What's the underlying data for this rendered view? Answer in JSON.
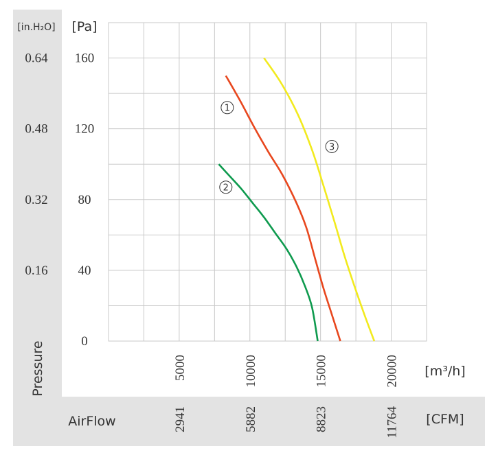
{
  "chart_data": {
    "type": "line",
    "x_unit_primary": "[m³/h]",
    "x_unit_secondary": "[CFM]",
    "y_unit_primary": "[Pa]",
    "y_unit_secondary": "[in.H₂O]",
    "ylabel": "Pressure",
    "xlabel": "AirFlow",
    "xlim": [
      0,
      22500
    ],
    "ylim": [
      0,
      180
    ],
    "x_ticks_primary": [
      5000,
      10000,
      15000,
      20000
    ],
    "x_ticks_secondary": [
      "2941",
      "5882",
      "8823",
      "11764"
    ],
    "y_ticks_primary": [
      0,
      40,
      80,
      120,
      160
    ],
    "y_ticks_secondary": [
      "0.16",
      "0.32",
      "0.48",
      "0.64"
    ],
    "grid": true,
    "series": [
      {
        "name": "1",
        "color": "#e8471e",
        "x": [
          8300,
          9300,
          10300,
          11300,
          12300,
          13300,
          14000,
          14600,
          15200,
          15800,
          16400
        ],
        "y": [
          150,
          136,
          121,
          107,
          94,
          78,
          64,
          47,
          30,
          15,
          0
        ],
        "label_at": [
          8400,
          132
        ]
      },
      {
        "name": "2",
        "color": "#0e9a4e",
        "x": [
          7800,
          8600,
          9400,
          10200,
          11000,
          11800,
          12600,
          13300,
          13900,
          14400,
          14800
        ],
        "y": [
          100,
          93,
          86,
          78,
          70,
          61,
          52,
          42,
          31,
          19,
          0
        ],
        "label_at": [
          8300,
          87
        ]
      },
      {
        "name": "3",
        "color": "#f2ea1e",
        "x": [
          11000,
          12200,
          13400,
          14400,
          15200,
          16000,
          16700,
          17400,
          18100,
          18800
        ],
        "y": [
          160,
          146,
          128,
          108,
          88,
          67,
          48,
          31,
          15,
          0
        ],
        "label_at": [
          15800,
          110
        ]
      }
    ]
  }
}
